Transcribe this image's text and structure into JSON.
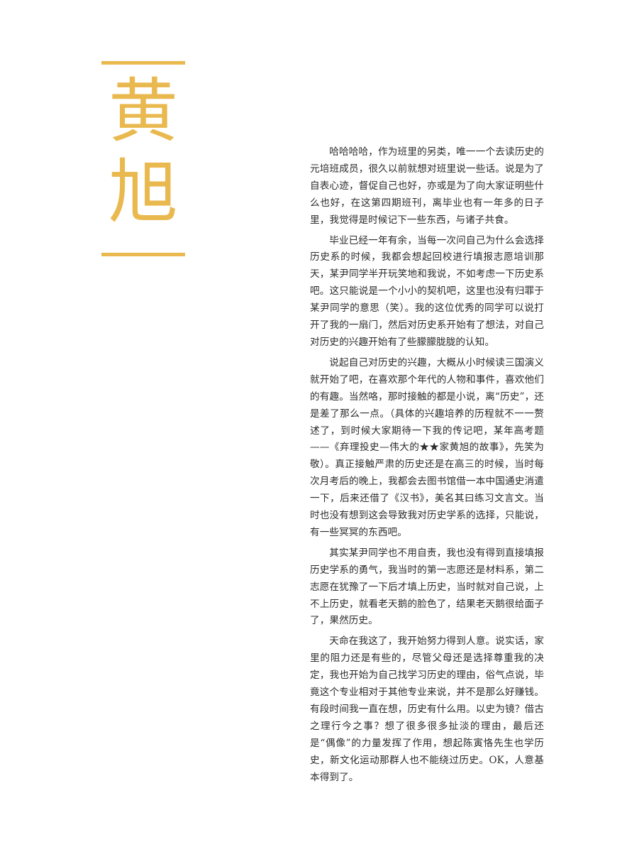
{
  "title": {
    "chars": [
      "黄",
      "旭"
    ],
    "color": "#e9b94f"
  },
  "article": {
    "paragraphs": [
      "哈哈哈哈，作为班里的另类，唯一一个去读历史的元培班成员，很久以前就想对班里说一些话。说是为了自表心迹，督促自己也好，亦或是为了向大家证明些什么也好，在这第四期班刊，离毕业也有一年多的日子里，我觉得是时候记下一些东西，与诸子共食。",
      "毕业已经一年有余，当每一次问自己为什么会选择历史系的时候，我都会想起回校进行填报志愿培训那天，某尹同学半开玩笑地和我说，不如考虑一下历史系吧。这只能说是一个小小的契机吧，这里也没有归罪于某尹同学的意思（笑）。我的这位优秀的同学可以说打开了我的一扇门，然后对历史系开始有了想法，对自己对历史的兴趣开始有了些朦朦胧胧的认知。",
      "说起自己对历史的兴趣，大概从小时候读三国演义就开始了吧，在喜欢那个年代的人物和事件，喜欢他们的有趣。当然咯，那时接触的都是小说，离“历史”，还是差了那么一点。（具体的兴趣培养的历程就不一一赘述了，到时候大家期待一下我的传记吧，某年高考题——《弃理投史—伟大的★★家黄旭的故事》，先笑为敬）。真正接触严肃的历史还是在高三的时候，当时每次月考后的晚上，我都会去图书馆借一本中国通史消遣一下，后来还借了《汉书》，美名其曰练习文言文。当时也没有想到这会导致我对历史学系的选择，只能说，有一些冥冥的东西吧。",
      "其实某尹同学也不用自责，我也没有得到直接填报历史学系的勇气，我当时的第一志愿还是材料系，第二志愿在犹豫了一下后才填上历史，当时就对自己说，上不上历史，就看老天鹅的脸色了，结果老天鹅很给面子了，果然历史。",
      "天命在我这了，我开始努力得到人意。说实话，家里的阻力还是有些的，尽管父母还是选择尊重我的决定，我也开始为自己找学习历史的理由，俗气点说，毕竟这个专业相对于其他专业来说，并不是那么好赚钱。有段时间我一直在想，历史有什么用。以史为镜？借古之理行今之事？想了很多很多扯淡的理由，最后还是“偶像”的力量发挥了作用，想起陈寅恪先生也学历史，新文化运动那群人也不能绕过历史。OK，人意基本得到了。"
    ]
  }
}
